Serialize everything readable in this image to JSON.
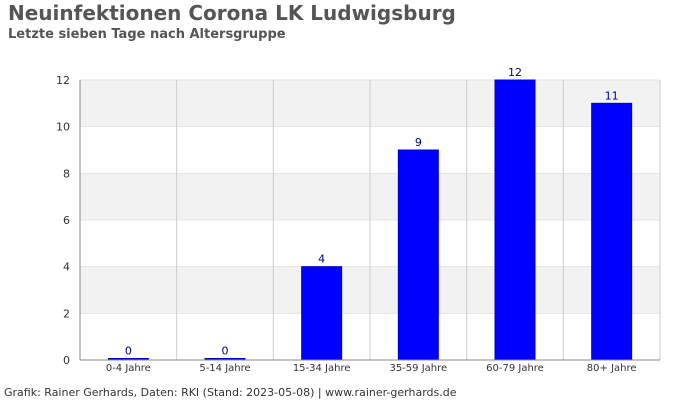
{
  "header": {
    "title": "Neuinfektionen Corona LK Ludwigsburg",
    "subtitle": "Letzte sieben Tage nach Altersgruppe"
  },
  "footer": {
    "source": "Grafik: Rainer Gerhards, Daten: RKI (Stand: 2023-05-08) | www.rainer-gerhards.de"
  },
  "colors": {
    "bar": "#0000ff",
    "bar_stroke": "#0000cc",
    "label": "#000080",
    "band": "#f2f2f2",
    "grid": "#cccccc",
    "axis": "#888888",
    "text": "#333333"
  },
  "chart_data": {
    "type": "bar",
    "categories": [
      "0-4 Jahre",
      "5-14 Jahre",
      "15-34 Jahre",
      "35-59 Jahre",
      "60-79 Jahre",
      "80+ Jahre"
    ],
    "values": [
      0,
      0,
      4,
      9,
      12,
      11
    ],
    "data_labels": [
      "0",
      "0",
      "4",
      "9",
      "12",
      "11"
    ],
    "ylim": [
      0,
      12
    ],
    "yticks": [
      0,
      2,
      4,
      6,
      8,
      10,
      12
    ],
    "ytick_labels": [
      "0",
      "2",
      "4",
      "6",
      "8",
      "10",
      "12"
    ],
    "grid": true,
    "legend": "none"
  }
}
